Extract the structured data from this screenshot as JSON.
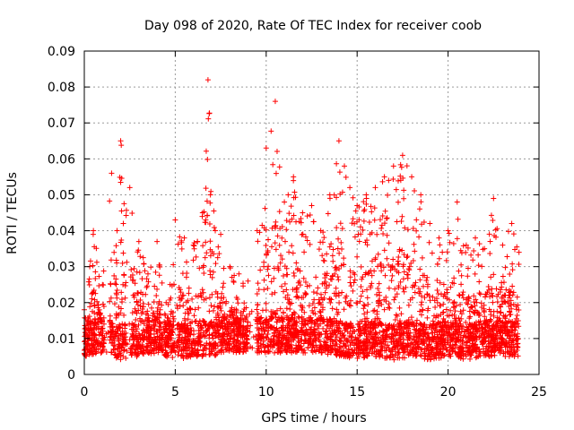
{
  "chart_data": {
    "type": "scatter",
    "title": "Day 098 of 2020, Rate Of TEC Index for receiver coob",
    "xlabel": "GPS time / hours",
    "ylabel": "ROTI / TECUs",
    "xlim": [
      0,
      25
    ],
    "ylim": [
      0,
      0.09
    ],
    "x_ticks": [
      "0",
      "5",
      "10",
      "15",
      "20",
      "25"
    ],
    "y_ticks": [
      "0",
      "0.01",
      "0.02",
      "0.03",
      "0.04",
      "0.05",
      "0.06",
      "0.07",
      "0.08",
      "0.09"
    ],
    "grid": true,
    "marker": "+",
    "color": "#ff0000",
    "series": [
      {
        "envelope": {
          "x": [
            0.0,
            0.3,
            0.5,
            1.0,
            1.5,
            1.8,
            2.0,
            2.5,
            3.0,
            3.5,
            4.0,
            4.5,
            5.0,
            5.5,
            6.0,
            6.5,
            6.8,
            7.2,
            7.5,
            8.0,
            8.5,
            9.0,
            9.5,
            10.0,
            10.5,
            11.0,
            11.5,
            12.0,
            12.5,
            13.0,
            13.5,
            14.0,
            14.3,
            14.6,
            15.0,
            15.5,
            16.0,
            16.5,
            17.0,
            17.5,
            18.0,
            18.5,
            19.0,
            19.5,
            20.0,
            20.5,
            21.0,
            21.5,
            22.0,
            22.5,
            23.0,
            23.5,
            23.9
          ],
          "y": [
            0.018,
            0.03,
            0.04,
            0.025,
            0.056,
            0.04,
            0.065,
            0.052,
            0.037,
            0.028,
            0.037,
            0.02,
            0.043,
            0.038,
            0.036,
            0.045,
            0.082,
            0.04,
            0.039,
            0.03,
            0.028,
            0.026,
            0.04,
            0.063,
            0.076,
            0.048,
            0.055,
            0.045,
            0.047,
            0.04,
            0.05,
            0.065,
            0.058,
            0.052,
            0.047,
            0.05,
            0.052,
            0.055,
            0.058,
            0.061,
            0.055,
            0.05,
            0.042,
            0.038,
            0.04,
            0.048,
            0.036,
            0.038,
            0.035,
            0.049,
            0.036,
            0.042,
            0.034
          ]
        },
        "baseline": {
          "x": [
            0.0,
            1.0,
            2.0,
            3.0,
            4.0,
            5.0,
            6.0,
            7.0,
            8.0,
            9.0,
            10.0,
            11.0,
            12.0,
            13.0,
            14.0,
            15.0,
            16.0,
            17.0,
            18.0,
            19.0,
            20.0,
            21.0,
            22.0,
            23.0,
            24.0
          ],
          "y": [
            0.005,
            0.006,
            0.004,
            0.005,
            0.006,
            0.004,
            0.005,
            0.005,
            0.006,
            0.006,
            0.006,
            0.006,
            0.006,
            0.006,
            0.005,
            0.004,
            0.005,
            0.004,
            0.005,
            0.004,
            0.005,
            0.004,
            0.005,
            0.005,
            0.005
          ]
        },
        "gaps_hours": [
          [
            1.1,
            1.4
          ],
          [
            2.3,
            2.55
          ],
          [
            4.95,
            5.1
          ],
          [
            9.0,
            9.5
          ]
        ]
      }
    ]
  }
}
